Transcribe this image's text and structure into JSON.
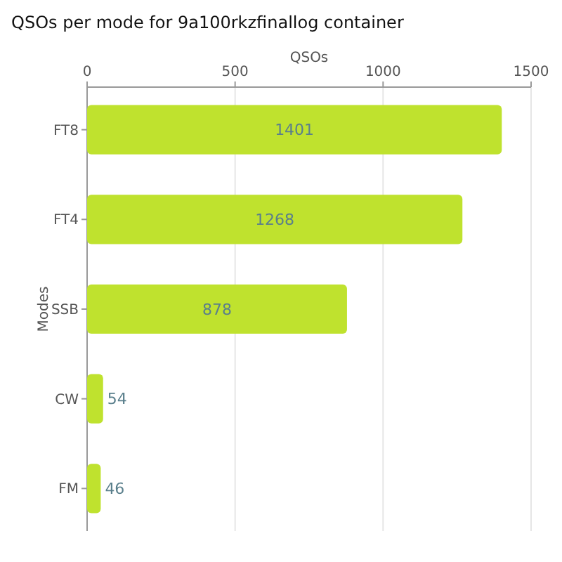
{
  "chart_data": {
    "type": "bar",
    "orientation": "horizontal",
    "title": "QSOs per mode for 9a100rkzfinallog container",
    "xlabel": "QSOs",
    "ylabel": "Modes",
    "categories": [
      "FT8",
      "FT4",
      "SSB",
      "CW",
      "FM"
    ],
    "values": [
      1401,
      1268,
      878,
      54,
      46
    ],
    "color": "#bfe22e",
    "xlim": [
      0,
      1500
    ],
    "xticks": [
      0,
      500,
      1000,
      1500
    ],
    "grid": "x",
    "data_labels": true
  }
}
